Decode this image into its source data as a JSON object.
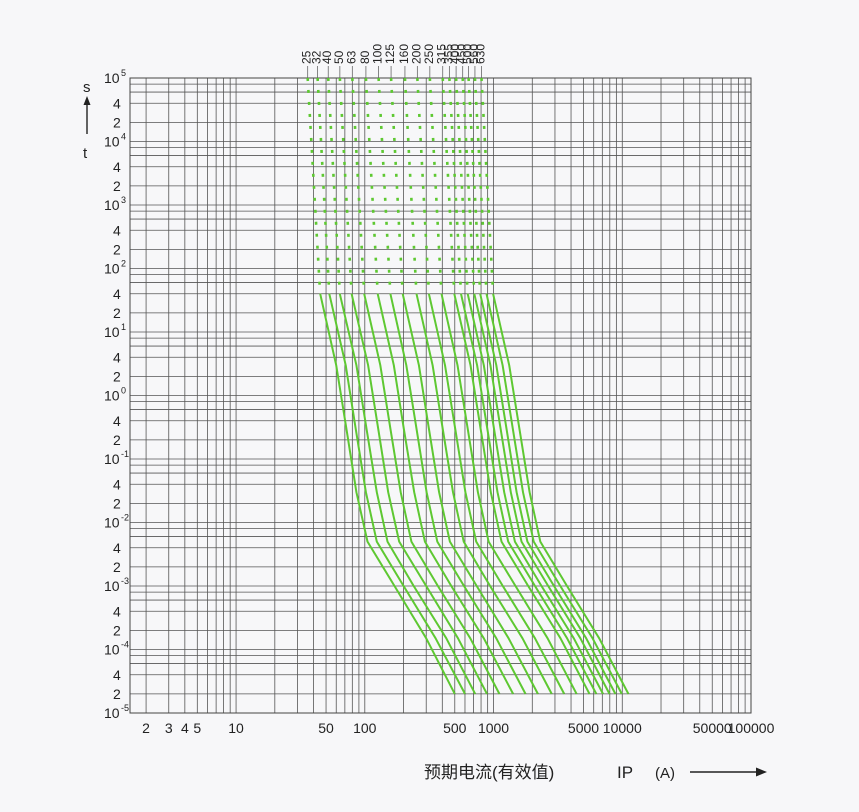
{
  "chart_data": {
    "type": "line",
    "title": "",
    "xlabel": "预期电流(有效值)",
    "xlabel_symbol": "IP",
    "xlabel_unit": "(A)",
    "ylabel_unit": "s",
    "ylabel_symbol": "t",
    "x_scale": "log",
    "y_scale": "log",
    "xlim": [
      1.5,
      100000
    ],
    "ylim": [
      1e-05,
      100000
    ],
    "grid": true,
    "x_ticks": [
      {
        "value": 2,
        "label": "2"
      },
      {
        "value": 3,
        "label": "3"
      },
      {
        "value": 4,
        "label": "4"
      },
      {
        "value": 5,
        "label": "5"
      },
      {
        "value": 10,
        "label": "10"
      },
      {
        "value": 50,
        "label": "50"
      },
      {
        "value": 100,
        "label": "100"
      },
      {
        "value": 500,
        "label": "500"
      },
      {
        "value": 1000,
        "label": "1000"
      },
      {
        "value": 5000,
        "label": "5000"
      },
      {
        "value": 10000,
        "label": "10000"
      },
      {
        "value": 50000,
        "label": "50000"
      },
      {
        "value": 100000,
        "label": "100000"
      }
    ],
    "y_ticks": [
      {
        "value": 100000,
        "base": "10",
        "exp": "5"
      },
      {
        "value": 40000,
        "label": "4"
      },
      {
        "value": 20000,
        "label": "2"
      },
      {
        "value": 10000,
        "base": "10",
        "exp": "4"
      },
      {
        "value": 4000,
        "label": "4"
      },
      {
        "value": 2000,
        "label": "2"
      },
      {
        "value": 1000,
        "base": "10",
        "exp": "3"
      },
      {
        "value": 400,
        "label": "4"
      },
      {
        "value": 200,
        "label": "2"
      },
      {
        "value": 100,
        "base": "10",
        "exp": "2"
      },
      {
        "value": 40,
        "label": "4"
      },
      {
        "value": 20,
        "label": "2"
      },
      {
        "value": 10,
        "base": "10",
        "exp": "1"
      },
      {
        "value": 4,
        "label": "4"
      },
      {
        "value": 2,
        "label": "2"
      },
      {
        "value": 1,
        "base": "10",
        "exp": "0"
      },
      {
        "value": 0.4,
        "label": "4"
      },
      {
        "value": 0.2,
        "label": "2"
      },
      {
        "value": 0.1,
        "base": "10",
        "exp": "-1"
      },
      {
        "value": 0.04,
        "label": "4"
      },
      {
        "value": 0.02,
        "label": "2"
      },
      {
        "value": 0.01,
        "base": "10",
        "exp": "-2"
      },
      {
        "value": 0.004,
        "label": "4"
      },
      {
        "value": 0.002,
        "label": "2"
      },
      {
        "value": 0.001,
        "base": "10",
        "exp": "-3"
      },
      {
        "value": 0.0004,
        "label": "4"
      },
      {
        "value": 0.0002,
        "label": "2"
      },
      {
        "value": 0.0001,
        "base": "10",
        "exp": "-4"
      },
      {
        "value": 4e-05,
        "label": "4"
      },
      {
        "value": 2e-05,
        "label": "2"
      },
      {
        "value": 1e-05,
        "base": "10",
        "exp": "-5"
      }
    ],
    "series_color": "#5ec832",
    "series": [
      {
        "name": "25",
        "points": [
          [
            36,
            100000
          ],
          [
            45,
            40
          ],
          [
            60,
            3
          ],
          [
            72,
            0.3
          ],
          [
            86,
            0.03
          ],
          [
            105,
            0.005
          ],
          [
            170,
            0.001
          ],
          [
            300,
            0.00015
          ],
          [
            500,
            2e-05
          ]
        ]
      },
      {
        "name": "32",
        "points": [
          [
            43,
            100000
          ],
          [
            53,
            40
          ],
          [
            71,
            3
          ],
          [
            85,
            0.3
          ],
          [
            102,
            0.03
          ],
          [
            124,
            0.005
          ],
          [
            200,
            0.001
          ],
          [
            355,
            0.00015
          ],
          [
            600,
            2e-05
          ]
        ]
      },
      {
        "name": "40",
        "points": [
          [
            52,
            100000
          ],
          [
            64,
            40
          ],
          [
            86,
            3
          ],
          [
            103,
            0.3
          ],
          [
            124,
            0.03
          ],
          [
            150,
            0.005
          ],
          [
            240,
            0.001
          ],
          [
            430,
            0.00015
          ],
          [
            720,
            2e-05
          ]
        ]
      },
      {
        "name": "50",
        "points": [
          [
            64,
            100000
          ],
          [
            79,
            40
          ],
          [
            106,
            3
          ],
          [
            127,
            0.3
          ],
          [
            152,
            0.03
          ],
          [
            185,
            0.005
          ],
          [
            300,
            0.001
          ],
          [
            530,
            0.00015
          ],
          [
            890,
            2e-05
          ]
        ]
      },
      {
        "name": "63",
        "points": [
          [
            80,
            100000
          ],
          [
            99,
            40
          ],
          [
            132,
            3
          ],
          [
            158,
            0.3
          ],
          [
            190,
            0.03
          ],
          [
            230,
            0.005
          ],
          [
            370,
            0.001
          ],
          [
            660,
            0.00015
          ],
          [
            1110,
            2e-05
          ]
        ]
      },
      {
        "name": "80",
        "points": [
          [
            102,
            100000
          ],
          [
            126,
            40
          ],
          [
            168,
            3
          ],
          [
            201,
            0.3
          ],
          [
            242,
            0.03
          ],
          [
            293,
            0.005
          ],
          [
            470,
            0.001
          ],
          [
            840,
            0.00015
          ],
          [
            1420,
            2e-05
          ]
        ]
      },
      {
        "name": "100",
        "points": [
          [
            128,
            100000
          ],
          [
            158,
            40
          ],
          [
            210,
            3
          ],
          [
            252,
            0.3
          ],
          [
            302,
            0.03
          ],
          [
            366,
            0.005
          ],
          [
            590,
            0.001
          ],
          [
            1050,
            0.00015
          ],
          [
            1770,
            2e-05
          ]
        ]
      },
      {
        "name": "125",
        "points": [
          [
            160,
            100000
          ],
          [
            197,
            40
          ],
          [
            263,
            3
          ],
          [
            315,
            0.3
          ],
          [
            378,
            0.03
          ],
          [
            458,
            0.005
          ],
          [
            740,
            0.001
          ],
          [
            1310,
            0.00015
          ],
          [
            2210,
            2e-05
          ]
        ]
      },
      {
        "name": "160",
        "points": [
          [
            205,
            100000
          ],
          [
            252,
            40
          ],
          [
            336,
            3
          ],
          [
            403,
            0.3
          ],
          [
            484,
            0.03
          ],
          [
            586,
            0.005
          ],
          [
            940,
            0.001
          ],
          [
            1680,
            0.00015
          ],
          [
            2830,
            2e-05
          ]
        ]
      },
      {
        "name": "200",
        "points": [
          [
            256,
            100000
          ],
          [
            315,
            40
          ],
          [
            420,
            3
          ],
          [
            504,
            0.3
          ],
          [
            605,
            0.03
          ],
          [
            733,
            0.005
          ],
          [
            1180,
            0.001
          ],
          [
            2100,
            0.00015
          ],
          [
            3540,
            2e-05
          ]
        ]
      },
      {
        "name": "250",
        "points": [
          [
            320,
            100000
          ],
          [
            394,
            40
          ],
          [
            525,
            3
          ],
          [
            630,
            0.3
          ],
          [
            756,
            0.03
          ],
          [
            916,
            0.005
          ],
          [
            1480,
            0.001
          ],
          [
            2630,
            0.00015
          ],
          [
            4420,
            2e-05
          ]
        ]
      },
      {
        "name": "315",
        "points": [
          [
            403,
            100000
          ],
          [
            496,
            40
          ],
          [
            662,
            3
          ],
          [
            794,
            0.3
          ],
          [
            953,
            0.03
          ],
          [
            1154,
            0.005
          ],
          [
            1860,
            0.001
          ],
          [
            3310,
            0.00015
          ],
          [
            5570,
            2e-05
          ]
        ]
      },
      {
        "name": "355",
        "points": [
          [
            454,
            100000
          ],
          [
            559,
            40
          ],
          [
            745,
            3
          ],
          [
            894,
            0.3
          ],
          [
            1073,
            0.03
          ],
          [
            1300,
            0.005
          ],
          [
            2100,
            0.001
          ],
          [
            3730,
            0.00015
          ],
          [
            6280,
            2e-05
          ]
        ]
      },
      {
        "name": "400",
        "points": [
          [
            512,
            100000
          ],
          [
            630,
            40
          ],
          [
            840,
            3
          ],
          [
            1008,
            0.3
          ],
          [
            1210,
            0.03
          ],
          [
            1466,
            0.005
          ],
          [
            2360,
            0.001
          ],
          [
            4200,
            0.00015
          ],
          [
            7080,
            2e-05
          ]
        ]
      },
      {
        "name": "450",
        "points": [
          [
            576,
            100000
          ],
          [
            709,
            40
          ],
          [
            945,
            3
          ],
          [
            1134,
            0.3
          ],
          [
            1361,
            0.03
          ],
          [
            1649,
            0.005
          ],
          [
            2660,
            0.001
          ],
          [
            4730,
            0.00015
          ],
          [
            7960,
            2e-05
          ]
        ]
      },
      {
        "name": "500",
        "points": [
          [
            640,
            100000
          ],
          [
            788,
            40
          ],
          [
            1050,
            3
          ],
          [
            1260,
            0.3
          ],
          [
            1512,
            0.03
          ],
          [
            1832,
            0.005
          ],
          [
            2950,
            0.001
          ],
          [
            5250,
            0.00015
          ],
          [
            8850,
            2e-05
          ]
        ]
      },
      {
        "name": "560",
        "points": [
          [
            717,
            100000
          ],
          [
            882,
            40
          ],
          [
            1176,
            3
          ],
          [
            1411,
            0.3
          ],
          [
            1694,
            0.03
          ],
          [
            2052,
            0.005
          ],
          [
            3300,
            0.001
          ],
          [
            5880,
            0.00015
          ],
          [
            9910,
            2e-05
          ]
        ]
      },
      {
        "name": "630",
        "points": [
          [
            806,
            100000
          ],
          [
            993,
            40
          ],
          [
            1323,
            3
          ],
          [
            1588,
            0.3
          ],
          [
            1905,
            0.03
          ],
          [
            2308,
            0.005
          ],
          [
            3720,
            0.001
          ],
          [
            6620,
            0.00015
          ],
          [
            11150,
            2e-05
          ]
        ]
      }
    ]
  }
}
